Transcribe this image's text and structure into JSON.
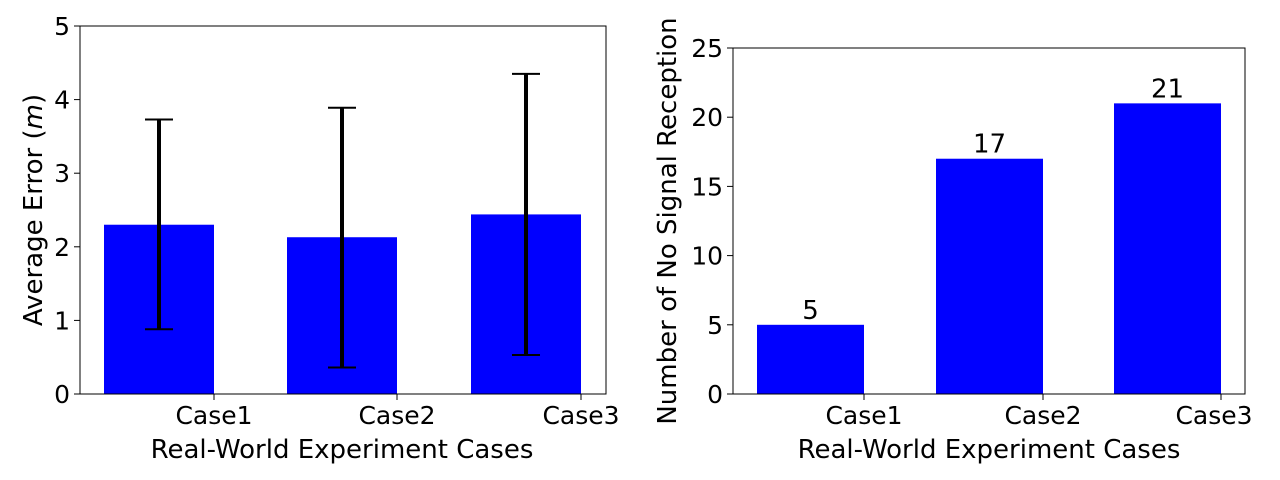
{
  "chart_data": [
    {
      "type": "bar",
      "categories": [
        "Case1",
        "Case2",
        "Case3"
      ],
      "values": [
        2.3,
        2.13,
        2.44
      ],
      "error_low": [
        0.88,
        0.36,
        0.53
      ],
      "error_high": [
        3.73,
        3.89,
        4.35
      ],
      "xlabel": "Real-World Experiment Cases",
      "ylabel_main": "Average Error (",
      "ylabel_unit": "m",
      "ylabel_end": ")",
      "ylim": [
        0,
        5
      ],
      "yticks": [
        "0",
        "1",
        "2",
        "3",
        "4",
        "5"
      ],
      "bar_color": "#0000ff",
      "error_color": "#000000",
      "grid": false
    },
    {
      "type": "bar",
      "categories": [
        "Case1",
        "Case2",
        "Case3"
      ],
      "values": [
        5,
        17,
        21
      ],
      "data_labels": [
        "5",
        "17",
        "21"
      ],
      "xlabel": "Real-World Experiment Cases",
      "ylabel": "Number of No Signal Reception",
      "ylim": [
        0,
        25
      ],
      "yticks": [
        "0",
        "5",
        "10",
        "15",
        "20",
        "25"
      ],
      "bar_color": "#0000ff",
      "grid": false
    }
  ]
}
